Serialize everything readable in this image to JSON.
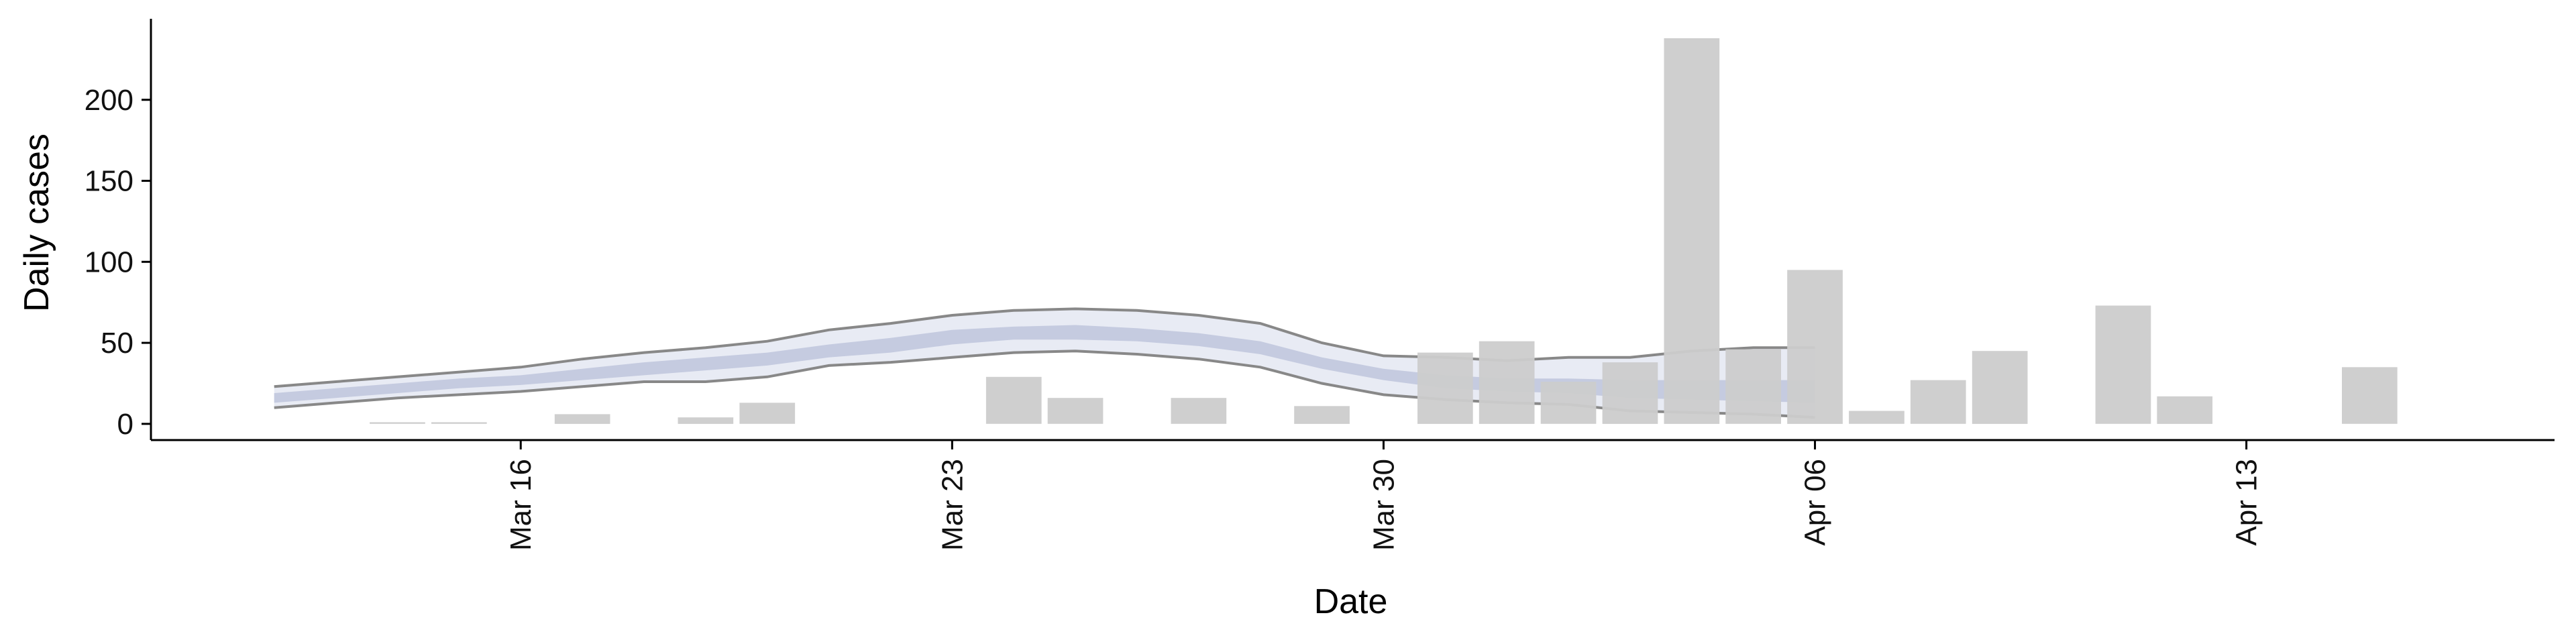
{
  "chart_data": {
    "type": "bar",
    "xlabel": "Date",
    "ylabel": "Daily cases",
    "xlim": [
      "2020-03-10",
      "2020-04-18"
    ],
    "ylim": [
      -10,
      250
    ],
    "x_ticks": [
      {
        "date": "2020-03-16",
        "label": "Mar 16"
      },
      {
        "date": "2020-03-23",
        "label": "Mar 23"
      },
      {
        "date": "2020-03-30",
        "label": "Mar 30"
      },
      {
        "date": "2020-04-06",
        "label": "Apr 06"
      },
      {
        "date": "2020-04-13",
        "label": "Apr 13"
      }
    ],
    "y_ticks": [
      0,
      50,
      100,
      150,
      200
    ],
    "grid": false,
    "bars": {
      "color": "#cccccc",
      "dates": [
        "2020-03-14",
        "2020-03-15",
        "2020-03-17",
        "2020-03-19",
        "2020-03-20",
        "2020-03-24",
        "2020-03-25",
        "2020-03-27",
        "2020-03-29",
        "2020-03-31",
        "2020-04-01",
        "2020-04-02",
        "2020-04-03",
        "2020-04-04",
        "2020-04-05",
        "2020-04-06",
        "2020-04-07",
        "2020-04-08",
        "2020-04-09",
        "2020-04-11",
        "2020-04-12",
        "2020-04-15"
      ],
      "values": [
        1,
        1,
        6,
        4,
        13,
        29,
        16,
        16,
        11,
        44,
        51,
        26,
        38,
        238,
        46,
        95,
        8,
        27,
        45,
        73,
        17,
        35
      ]
    },
    "series": [
      {
        "type": "band",
        "outer_color": "#e8ebf4",
        "inner_color": "#c5cbe0",
        "edge_color": "#888888",
        "dates": [
          "2020-03-12",
          "2020-03-13",
          "2020-03-14",
          "2020-03-15",
          "2020-03-16",
          "2020-03-17",
          "2020-03-18",
          "2020-03-19",
          "2020-03-20",
          "2020-03-21",
          "2020-03-22",
          "2020-03-23",
          "2020-03-24",
          "2020-03-25",
          "2020-03-26",
          "2020-03-27",
          "2020-03-28",
          "2020-03-29",
          "2020-03-30",
          "2020-03-31",
          "2020-04-01",
          "2020-04-02",
          "2020-04-03",
          "2020-04-04",
          "2020-04-05",
          "2020-04-06"
        ],
        "upper": [
          23,
          26,
          29,
          32,
          35,
          40,
          44,
          47,
          51,
          58,
          62,
          67,
          70,
          71,
          70,
          67,
          62,
          50,
          42,
          41,
          39,
          41,
          41,
          45,
          47,
          47
        ],
        "lower": [
          10,
          13,
          16,
          18,
          20,
          23,
          26,
          26,
          29,
          36,
          38,
          41,
          44,
          45,
          43,
          40,
          35,
          25,
          18,
          15,
          13,
          12,
          8,
          7,
          6,
          4
        ],
        "inner_upper": [
          19,
          22,
          25,
          28,
          30,
          34,
          38,
          41,
          44,
          49,
          53,
          58,
          60,
          61,
          59,
          56,
          51,
          41,
          34,
          30,
          28,
          28,
          27,
          27,
          27,
          27
        ],
        "inner_lower": [
          13,
          16,
          19,
          22,
          24,
          27,
          30,
          33,
          36,
          41,
          44,
          49,
          52,
          52,
          51,
          48,
          43,
          34,
          27,
          22,
          20,
          19,
          16,
          15,
          14,
          13
        ]
      }
    ]
  }
}
